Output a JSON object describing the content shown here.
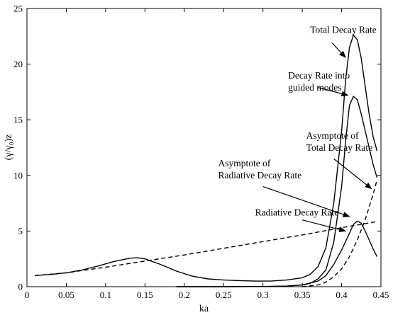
{
  "chart_data": {
    "type": "line",
    "xlabel": "ka",
    "ylabel": "(γ/γ₀)z",
    "xlim": [
      0,
      0.45
    ],
    "ylim": [
      0,
      25
    ],
    "xticks": [
      "0",
      "0.05",
      "0.1",
      "0.15",
      "0.2",
      "0.25",
      "0.3",
      "0.35",
      "0.4",
      "0.45"
    ],
    "yticks": [
      "0",
      "5",
      "10",
      "15",
      "20",
      "25"
    ],
    "grid": false,
    "series": [
      {
        "name": "Total Decay Rate",
        "style": "solid",
        "x": [
          0.01,
          0.03,
          0.05,
          0.07,
          0.09,
          0.11,
          0.13,
          0.14,
          0.15,
          0.17,
          0.19,
          0.21,
          0.23,
          0.25,
          0.27,
          0.29,
          0.31,
          0.33,
          0.35,
          0.36,
          0.37,
          0.38,
          0.39,
          0.4,
          0.405,
          0.41,
          0.415,
          0.42,
          0.425,
          0.43,
          0.435,
          0.44,
          0.445
        ],
        "y": [
          1.0,
          1.1,
          1.25,
          1.5,
          1.85,
          2.25,
          2.55,
          2.6,
          2.5,
          2.0,
          1.4,
          0.95,
          0.7,
          0.6,
          0.55,
          0.5,
          0.5,
          0.6,
          0.8,
          1.1,
          1.8,
          3.5,
          7.5,
          14.0,
          18.5,
          21.5,
          22.6,
          22.2,
          20.5,
          18.0,
          15.5,
          13.5,
          12.2
        ]
      },
      {
        "name": "Decay Rate into guided modes",
        "style": "solid",
        "x": [
          0.19,
          0.25,
          0.3,
          0.33,
          0.35,
          0.36,
          0.37,
          0.38,
          0.39,
          0.4,
          0.405,
          0.41,
          0.415,
          0.42,
          0.425,
          0.43,
          0.435,
          0.44,
          0.445
        ],
        "y": [
          0.0,
          0.0,
          0.02,
          0.05,
          0.15,
          0.3,
          0.7,
          1.5,
          4.0,
          9.0,
          13.0,
          16.3,
          17.1,
          16.8,
          15.5,
          14.0,
          12.5,
          11.0,
          9.8
        ]
      },
      {
        "name": "Radiative Decay Rate",
        "style": "solid",
        "x": [
          0.19,
          0.25,
          0.3,
          0.33,
          0.35,
          0.37,
          0.38,
          0.39,
          0.4,
          0.41,
          0.415,
          0.42,
          0.425,
          0.43,
          0.435,
          0.44,
          0.445
        ],
        "y": [
          0.0,
          0.0,
          0.02,
          0.05,
          0.15,
          0.5,
          1.0,
          2.0,
          3.3,
          4.8,
          5.6,
          5.9,
          5.7,
          5.0,
          4.2,
          3.4,
          2.7
        ]
      },
      {
        "name": "Asymptote of Total Decay Rate",
        "style": "dashed",
        "x": [
          0.01,
          0.05,
          0.1,
          0.15,
          0.2,
          0.25,
          0.3,
          0.35,
          0.4,
          0.445
        ],
        "y": [
          1.0,
          1.25,
          1.75,
          2.3,
          2.85,
          3.45,
          4.05,
          4.65,
          5.3,
          5.85
        ]
      },
      {
        "name": "Asymptote of Radiative Decay Rate",
        "style": "dashed",
        "x": [
          0.35,
          0.37,
          0.38,
          0.39,
          0.4,
          0.41,
          0.42,
          0.43,
          0.44,
          0.445
        ],
        "y": [
          0.0,
          0.15,
          0.4,
          0.9,
          1.6,
          2.7,
          4.2,
          6.0,
          8.3,
          9.6
        ]
      }
    ],
    "annotations": [
      {
        "lines": [
          "Total Decay Rate"
        ],
        "text_at": [
          0.36,
          22.8
        ],
        "arrow_from": [
          0.388,
          21.9
        ],
        "arrow_to": [
          0.405,
          20.6
        ]
      },
      {
        "lines": [
          "Decay Rate into",
          "guided modes"
        ],
        "text_at": [
          0.332,
          18.7
        ],
        "arrow_from": [
          0.37,
          17.9
        ],
        "arrow_to": [
          0.408,
          17.2
        ]
      },
      {
        "lines": [
          "Asymptote of",
          "Total Decay Rate"
        ],
        "text_at": [
          0.355,
          13.3
        ],
        "arrow_from": [
          0.39,
          11.5
        ],
        "arrow_to": [
          0.438,
          8.8
        ]
      },
      {
        "lines": [
          "Asymptote of",
          "Radiative Decay Rate"
        ],
        "text_at": [
          0.243,
          10.8
        ],
        "arrow_from": [
          0.3,
          9.0
        ],
        "arrow_to": [
          0.41,
          6.3
        ]
      },
      {
        "lines": [
          "Radiative Decay Rate"
        ],
        "text_at": [
          0.29,
          6.4
        ],
        "arrow_from": [
          0.35,
          6.0
        ],
        "arrow_to": [
          0.405,
          5.0
        ]
      }
    ]
  }
}
